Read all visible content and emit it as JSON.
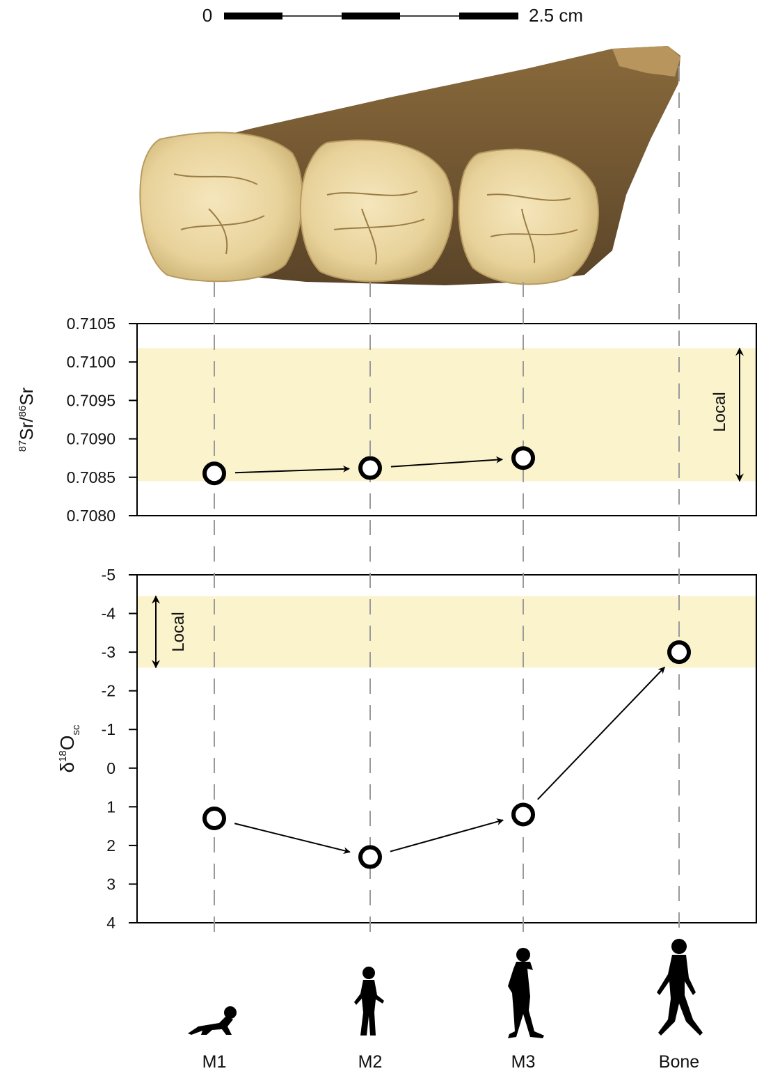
{
  "scale_bar": {
    "start_label": "0",
    "end_label": "2.5 cm"
  },
  "image_subject": "mandible-with-molars",
  "colors": {
    "local_band": "#fbf3cc",
    "guide_line": "#9a9a9a",
    "marker": "#000000"
  },
  "silhouettes": [
    "infant-crawling-icon",
    "child-walking-icon",
    "adolescent-standing-icon",
    "adult-walking-icon"
  ],
  "chart_data": [
    {
      "type": "scatter",
      "categories": [
        "M1",
        "M2",
        "M3"
      ],
      "values": [
        0.70855,
        0.70862,
        0.70875
      ],
      "ylim": [
        0.708,
        0.7105
      ],
      "yticks": [
        "0.7105",
        "0.7100",
        "0.7095",
        "0.7090",
        "0.7085",
        "0.7080"
      ],
      "ylabel_sup1": "87",
      "ylabel_base1": "Sr/",
      "ylabel_sup2": "86",
      "ylabel_base2": "Sr",
      "band": [
        0.70845,
        0.71018
      ],
      "band_label": "Local",
      "arrows_between_points": true
    },
    {
      "type": "scatter",
      "categories": [
        "M1",
        "M2",
        "M3",
        "Bone"
      ],
      "values": [
        1.3,
        2.3,
        1.2,
        -3.0
      ],
      "ylim": [
        4,
        -5
      ],
      "y_inverted": true,
      "yticks": [
        "-5",
        "-4",
        "-3",
        "-2",
        "-1",
        "0",
        "1",
        "2",
        "3",
        "4"
      ],
      "ylabel_main": "δ",
      "ylabel_sup": "18",
      "ylabel_base": "O",
      "ylabel_sub": "sc",
      "band": [
        -4.45,
        -2.6
      ],
      "band_label": "Local",
      "arrows_between_points": true
    }
  ],
  "x_categories": [
    "M1",
    "M2",
    "M3",
    "Bone"
  ]
}
